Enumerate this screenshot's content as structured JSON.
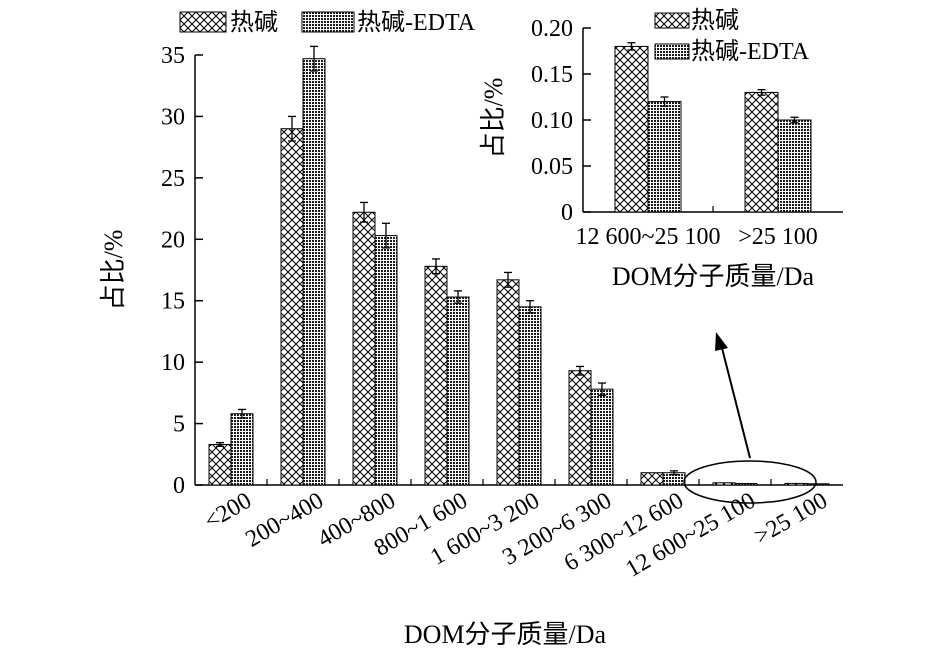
{
  "chart_data": [
    {
      "type": "bar",
      "xlabel": "DOM分子质量/Da",
      "ylabel": "占比/%",
      "ylim": [
        0,
        35
      ],
      "yticks": [
        "0",
        "5",
        "10",
        "15",
        "20",
        "25",
        "30",
        "35"
      ],
      "categories": [
        "<200",
        "200~400",
        "400~800",
        "800~1 600",
        "1 600~3 200",
        "3 200~6 300",
        "6 300~12 600",
        "12 600~25 100",
        ">25 100"
      ],
      "series": [
        {
          "name": "热碱",
          "pattern": "crosshatch",
          "values": [
            3.3,
            29.0,
            22.2,
            17.8,
            16.7,
            9.3,
            1.0,
            0.18,
            0.13
          ],
          "errors": [
            0.15,
            1.0,
            0.8,
            0.6,
            0.6,
            0.35,
            0.1,
            0.01,
            0.01
          ]
        },
        {
          "name": "热碱-EDTA",
          "pattern": "dense-grid",
          "values": [
            5.8,
            34.7,
            20.3,
            15.3,
            14.5,
            7.8,
            1.0,
            0.12,
            0.1
          ],
          "errors": [
            0.35,
            1.0,
            1.0,
            0.5,
            0.5,
            0.5,
            0.15,
            0.01,
            0.01
          ]
        }
      ],
      "legend": "top-left",
      "grid": false
    },
    {
      "type": "bar",
      "xlabel": "DOM分子质量/Da",
      "ylabel": "占比/%",
      "ylim": [
        0,
        0.2
      ],
      "yticks": [
        "0",
        "0.05",
        "0.10",
        "0.15",
        "0.20"
      ],
      "categories": [
        "12 600~25 100",
        ">25 100"
      ],
      "series": [
        {
          "name": "热碱",
          "pattern": "crosshatch",
          "values": [
            0.18,
            0.13
          ],
          "errors": [
            0.004,
            0.003
          ]
        },
        {
          "name": "热碱-EDTA",
          "pattern": "dense-grid",
          "values": [
            0.12,
            0.1
          ],
          "errors": [
            0.005,
            0.003
          ]
        }
      ],
      "legend": "top-right",
      "grid": false
    }
  ]
}
